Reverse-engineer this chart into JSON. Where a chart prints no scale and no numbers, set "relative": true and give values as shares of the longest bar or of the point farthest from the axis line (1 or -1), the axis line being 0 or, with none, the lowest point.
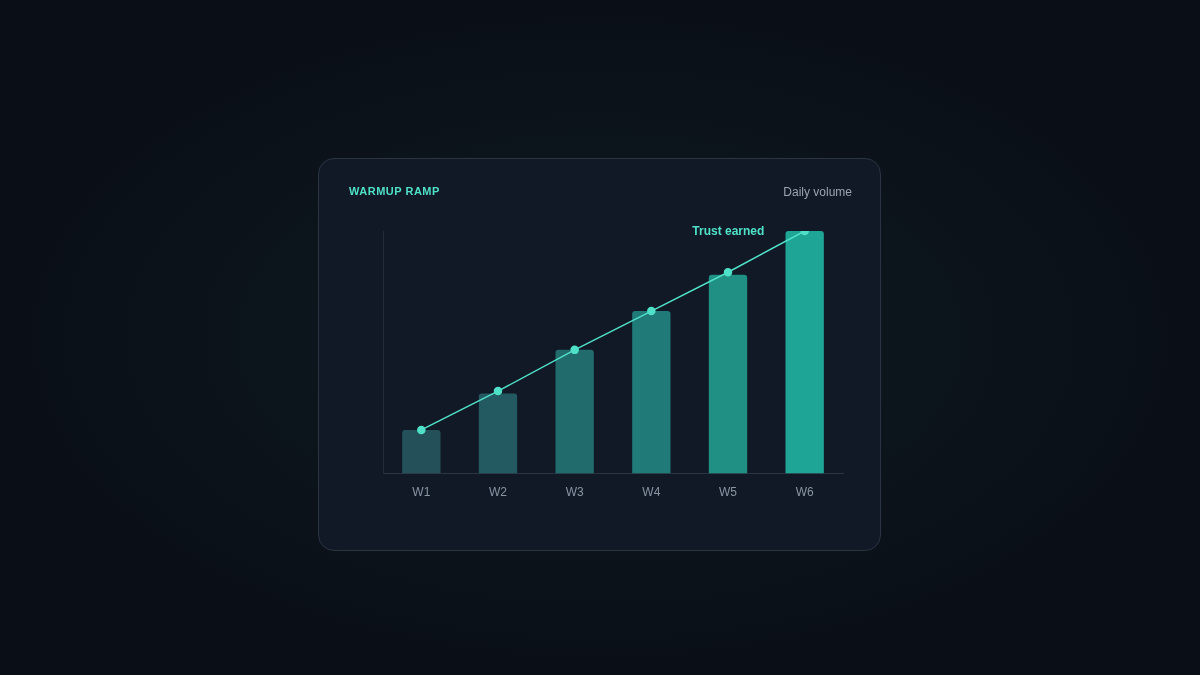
{
  "chart_data": {
    "type": "bar",
    "title": "WARMUP RAMP",
    "subtitle": "Daily volume",
    "relative": true,
    "categories": [
      "W1",
      "W2",
      "W3",
      "W4",
      "W5",
      "W6"
    ],
    "series": [
      {
        "colors": [
          "#24505a",
          "#235a61",
          "#226b6d",
          "#207a77",
          "#1f9083",
          "#1fa595"
        ],
        "values": [
          0.18,
          0.33,
          0.51,
          0.67,
          0.82,
          1
        ]
      },
      {
        "type": "line",
        "color": "#4fe0c8",
        "values": [
          0.18,
          0.34,
          0.51,
          0.67,
          0.83,
          1
        ]
      }
    ],
    "marker": "circle",
    "line_style": "solid",
    "grid": false,
    "legend": false,
    "annotations": [
      "Trust earned"
    ]
  }
}
